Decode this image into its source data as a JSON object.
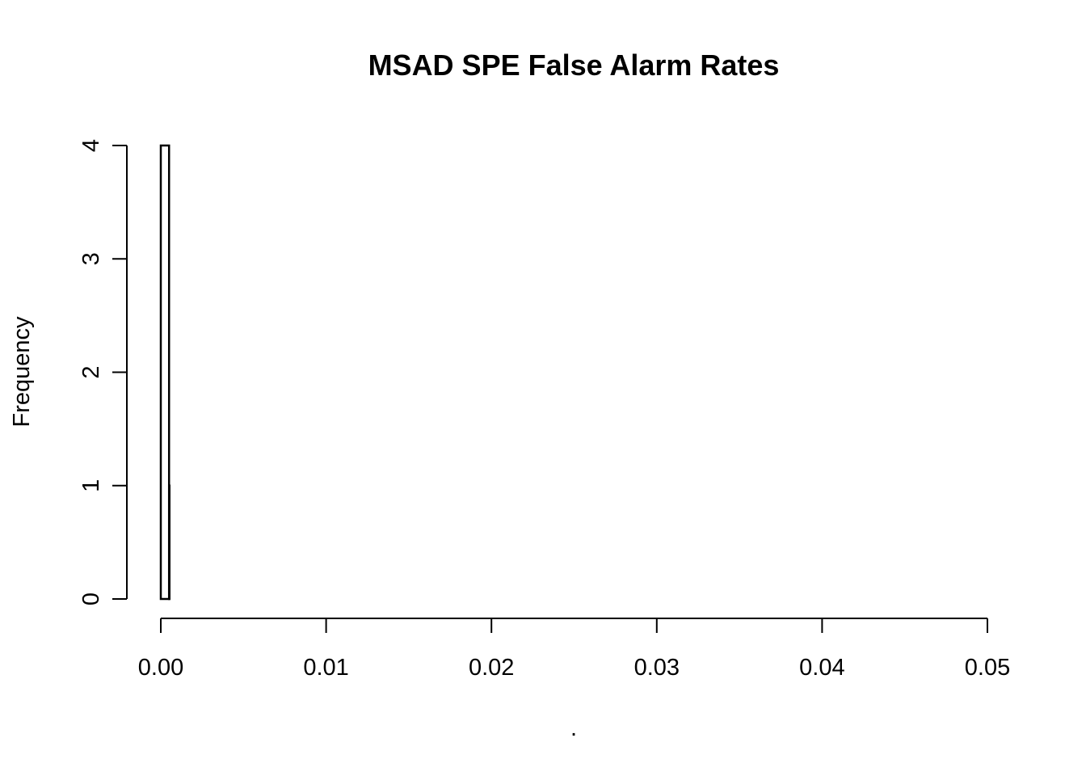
{
  "chart_data": {
    "type": "bar",
    "title": "MSAD SPE False Alarm Rates",
    "xlabel": ".",
    "ylabel": "Frequency",
    "xlim": [
      0,
      0.05
    ],
    "ylim": [
      0,
      4
    ],
    "x_ticks": [
      "0.00",
      "0.01",
      "0.02",
      "0.03",
      "0.04",
      "0.05"
    ],
    "y_ticks": [
      "0",
      "1",
      "2",
      "3",
      "4"
    ],
    "bins": [
      {
        "start": 0.0,
        "end": 0.0005,
        "count": 4
      },
      {
        "start": 0.0005,
        "end": 0.0005,
        "count": 1
      }
    ],
    "grid": false,
    "colors": {
      "bar_fill": "#ffffff",
      "bar_stroke": "#000000"
    }
  }
}
